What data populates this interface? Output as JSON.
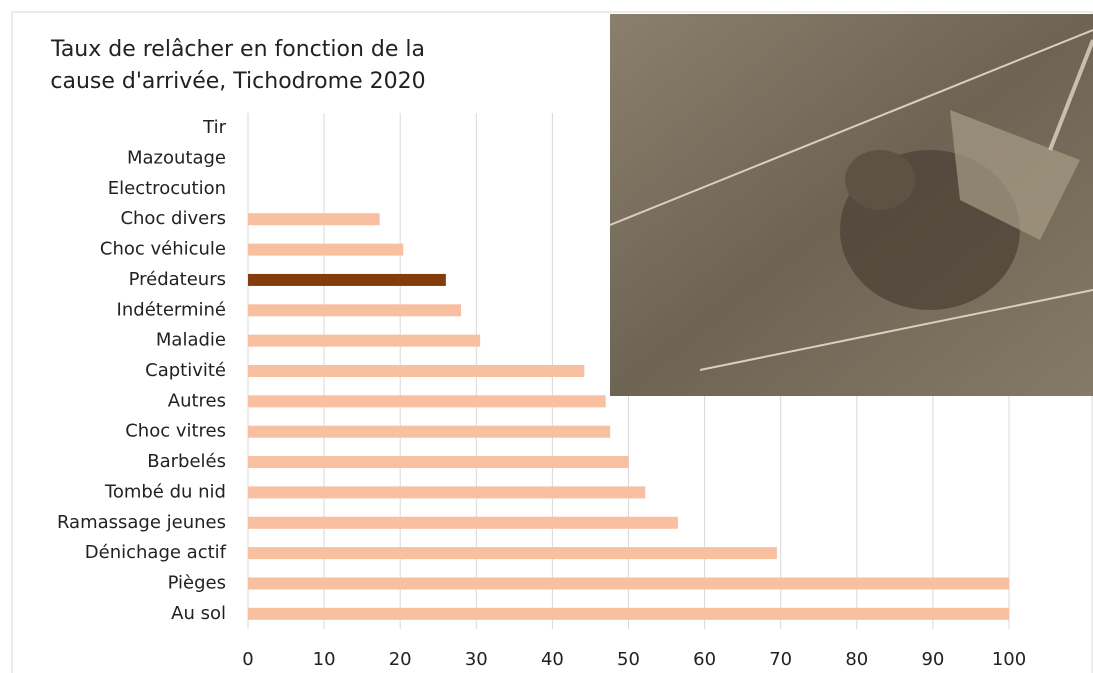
{
  "chart_data": {
    "type": "barh",
    "title": "Taux de relâcher en fonction de la cause d'arrivée, Tichodrome 2020",
    "categories": [
      "Tir",
      "Mazoutage",
      "Electrocution",
      "Choc divers",
      "Choc véhicule",
      "Prédateurs",
      "Indéterminé",
      "Maladie",
      "Captivité",
      "Autres",
      "Choc vitres",
      "Barbelés",
      "Tombé du nid",
      "Ramassage jeunes",
      "Dénichage actif",
      "Pièges",
      "Au sol"
    ],
    "values": [
      0,
      0,
      0,
      17.3,
      20.4,
      26,
      28,
      30.5,
      44.2,
      47,
      47.6,
      50,
      52.2,
      56.5,
      69.5,
      100,
      100
    ],
    "colors": [
      "#f8c0a0",
      "#f8c0a0",
      "#f8c0a0",
      "#f8c0a0",
      "#f8c0a0",
      "#843c0c",
      "#f8c0a0",
      "#f8c0a0",
      "#f8c0a0",
      "#f8c0a0",
      "#f8c0a0",
      "#f8c0a0",
      "#f8c0a0",
      "#f8c0a0",
      "#f8c0a0",
      "#f8c0a0",
      "#f8c0a0"
    ],
    "xlim": [
      0,
      100
    ],
    "xticks": [
      0,
      10,
      20,
      30,
      40,
      50,
      60,
      70,
      80,
      90,
      100
    ],
    "grid": true
  }
}
